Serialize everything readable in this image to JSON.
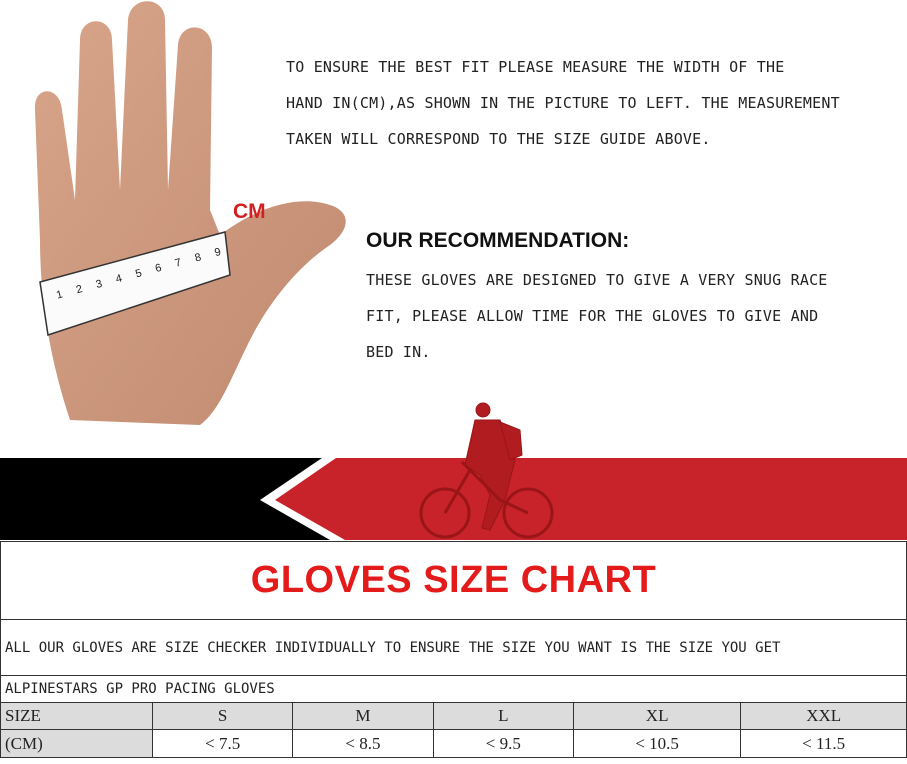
{
  "hand_graphic": {
    "unit_label": "CM",
    "ruler_ticks": [
      "1",
      "2",
      "3",
      "4",
      "5",
      "6",
      "7",
      "8",
      "9"
    ]
  },
  "intro": {
    "lines": [
      "TO ENSURE THE BEST FIT PLEASE MEASURE THE WIDTH OF THE",
      "HAND IN(CM),AS SHOWN IN THE PICTURE TO LEFT. THE MEASUREMENT",
      "TAKEN WILL CORRESPOND TO THE SIZE GUIDE ABOVE."
    ]
  },
  "recommendation": {
    "heading": "OUR RECOMMENDATION:",
    "lines": [
      "THESE GLOVES ARE DESIGNED TO GIVE A VERY SNUG RACE",
      "FIT, PLEASE ALLOW TIME FOR THE GLOVES TO GIVE AND",
      "BED IN."
    ]
  },
  "colors": {
    "accent_red": "#c8232a",
    "black": "#000000",
    "title_red": "#e41b1b"
  },
  "chart": {
    "title": "GLOVES SIZE CHART",
    "note": "ALL  OUR GLOVES ARE SIZE CHECKER INDIVIDUALLY TO ENSURE THE SIZE YOU WANT IS THE SIZE YOU GET",
    "model": "ALPINESTARS GP PRO PACING GLOVES",
    "size_header": "SIZE",
    "unit_header": "(CM)",
    "sizes": [
      "S",
      "M",
      "L",
      "XL",
      "XXL"
    ],
    "measurements": [
      "< 7.5",
      "< 8.5",
      "< 9.5",
      "< 10.5",
      "< 11.5"
    ]
  }
}
